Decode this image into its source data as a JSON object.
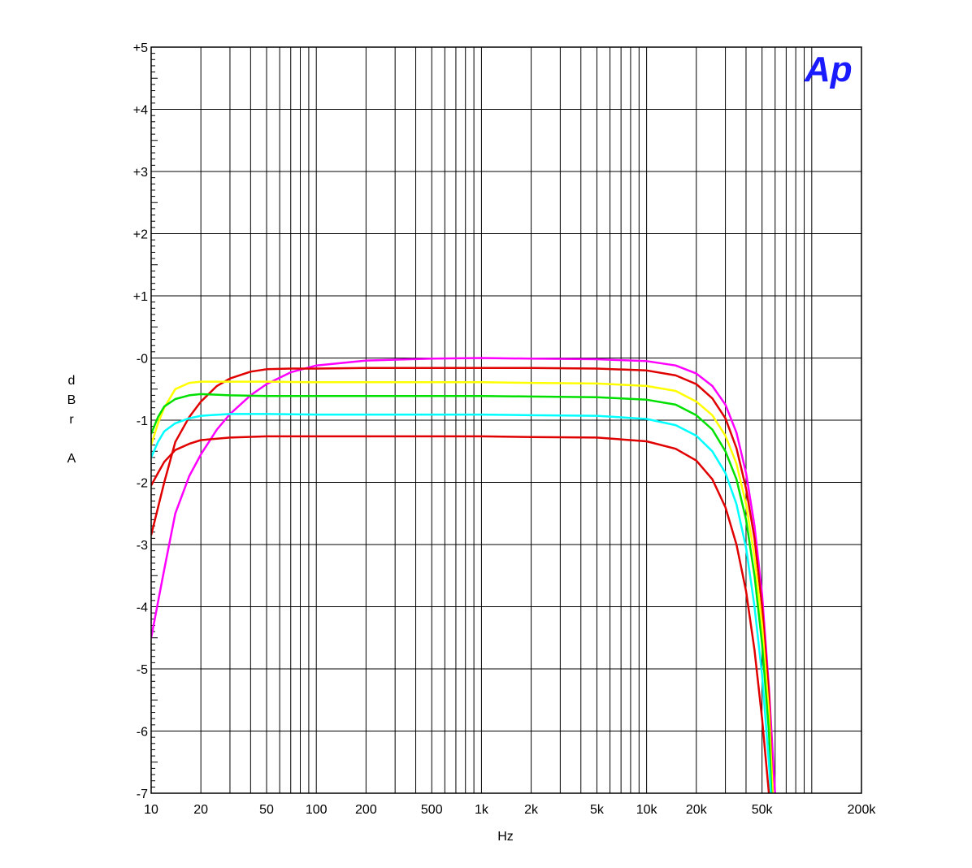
{
  "logo": "Ap",
  "chart_data": {
    "type": "line",
    "xlabel": "Hz",
    "ylabel": "dBr A",
    "ylabel_chars": [
      "d",
      "B",
      "r",
      "",
      "A"
    ],
    "x_scale": "log",
    "xlim": [
      10,
      200000
    ],
    "ylim": [
      -7,
      5
    ],
    "grid": true,
    "x_tick_labels": [
      {
        "v": 10,
        "t": "10"
      },
      {
        "v": 20,
        "t": "20"
      },
      {
        "v": 50,
        "t": "50"
      },
      {
        "v": 100,
        "t": "100"
      },
      {
        "v": 200,
        "t": "200"
      },
      {
        "v": 500,
        "t": "500"
      },
      {
        "v": 1000,
        "t": "1k"
      },
      {
        "v": 2000,
        "t": "2k"
      },
      {
        "v": 5000,
        "t": "5k"
      },
      {
        "v": 10000,
        "t": "10k"
      },
      {
        "v": 20000,
        "t": "20k"
      },
      {
        "v": 50000,
        "t": "50k"
      },
      {
        "v": 200000,
        "t": "200k"
      }
    ],
    "y_tick_labels": [
      {
        "v": 5,
        "t": "+5"
      },
      {
        "v": 4,
        "t": "+4"
      },
      {
        "v": 3,
        "t": "+3"
      },
      {
        "v": 2,
        "t": "+2"
      },
      {
        "v": 1,
        "t": "+1"
      },
      {
        "v": 0,
        "t": "-0"
      },
      {
        "v": -1,
        "t": "-1"
      },
      {
        "v": -2,
        "t": "-2"
      },
      {
        "v": -3,
        "t": "-3"
      },
      {
        "v": -4,
        "t": "-4"
      },
      {
        "v": -5,
        "t": "-5"
      },
      {
        "v": -6,
        "t": "-6"
      },
      {
        "v": -7,
        "t": "-7"
      }
    ],
    "series": [
      {
        "color": "#ff00ff",
        "points": [
          [
            10,
            -4.5
          ],
          [
            12,
            -3.4
          ],
          [
            14,
            -2.5
          ],
          [
            17,
            -1.9
          ],
          [
            20,
            -1.55
          ],
          [
            25,
            -1.15
          ],
          [
            30,
            -0.9
          ],
          [
            40,
            -0.6
          ],
          [
            50,
            -0.42
          ],
          [
            70,
            -0.23
          ],
          [
            100,
            -0.12
          ],
          [
            200,
            -0.04
          ],
          [
            500,
            -0.01
          ],
          [
            1000,
            0
          ],
          [
            2000,
            -0.01
          ],
          [
            5000,
            -0.02
          ],
          [
            10000,
            -0.05
          ],
          [
            15000,
            -0.12
          ],
          [
            20000,
            -0.25
          ],
          [
            25000,
            -0.45
          ],
          [
            30000,
            -0.75
          ],
          [
            35000,
            -1.2
          ],
          [
            40000,
            -1.85
          ],
          [
            45000,
            -2.7
          ],
          [
            50000,
            -3.8
          ],
          [
            55000,
            -5.3
          ],
          [
            60000,
            -7
          ]
        ]
      },
      {
        "color": "#e00000",
        "points": [
          [
            10,
            -2.85
          ],
          [
            12,
            -2.0
          ],
          [
            14,
            -1.35
          ],
          [
            17,
            -0.95
          ],
          [
            20,
            -0.7
          ],
          [
            25,
            -0.45
          ],
          [
            30,
            -0.33
          ],
          [
            40,
            -0.22
          ],
          [
            50,
            -0.18
          ],
          [
            70,
            -0.17
          ],
          [
            100,
            -0.17
          ],
          [
            200,
            -0.16
          ],
          [
            500,
            -0.16
          ],
          [
            1000,
            -0.16
          ],
          [
            2000,
            -0.16
          ],
          [
            5000,
            -0.17
          ],
          [
            10000,
            -0.2
          ],
          [
            15000,
            -0.28
          ],
          [
            20000,
            -0.42
          ],
          [
            25000,
            -0.65
          ],
          [
            30000,
            -0.97
          ],
          [
            35000,
            -1.45
          ],
          [
            40000,
            -2.1
          ],
          [
            45000,
            -2.9
          ],
          [
            50000,
            -4.0
          ],
          [
            55000,
            -5.4
          ],
          [
            58000,
            -7
          ]
        ]
      },
      {
        "color": "#ffff00",
        "points": [
          [
            10,
            -1.4
          ],
          [
            11,
            -1.05
          ],
          [
            12,
            -0.8
          ],
          [
            14,
            -0.5
          ],
          [
            17,
            -0.4
          ],
          [
            20,
            -0.38
          ],
          [
            30,
            -0.38
          ],
          [
            50,
            -0.38
          ],
          [
            100,
            -0.39
          ],
          [
            200,
            -0.39
          ],
          [
            500,
            -0.39
          ],
          [
            1000,
            -0.39
          ],
          [
            2000,
            -0.4
          ],
          [
            5000,
            -0.41
          ],
          [
            10000,
            -0.45
          ],
          [
            15000,
            -0.53
          ],
          [
            20000,
            -0.7
          ],
          [
            25000,
            -0.92
          ],
          [
            30000,
            -1.25
          ],
          [
            35000,
            -1.7
          ],
          [
            40000,
            -2.35
          ],
          [
            45000,
            -3.2
          ],
          [
            50000,
            -4.3
          ],
          [
            55000,
            -5.7
          ],
          [
            58000,
            -7
          ]
        ]
      },
      {
        "color": "#00e000",
        "points": [
          [
            10,
            -1.22
          ],
          [
            11,
            -0.95
          ],
          [
            12,
            -0.78
          ],
          [
            14,
            -0.66
          ],
          [
            17,
            -0.6
          ],
          [
            20,
            -0.58
          ],
          [
            30,
            -0.6
          ],
          [
            50,
            -0.61
          ],
          [
            100,
            -0.61
          ],
          [
            200,
            -0.61
          ],
          [
            500,
            -0.61
          ],
          [
            1000,
            -0.61
          ],
          [
            2000,
            -0.62
          ],
          [
            5000,
            -0.63
          ],
          [
            10000,
            -0.67
          ],
          [
            15000,
            -0.75
          ],
          [
            20000,
            -0.92
          ],
          [
            25000,
            -1.15
          ],
          [
            30000,
            -1.5
          ],
          [
            35000,
            -1.95
          ],
          [
            40000,
            -2.6
          ],
          [
            45000,
            -3.5
          ],
          [
            50000,
            -4.6
          ],
          [
            55000,
            -6.0
          ],
          [
            57000,
            -7
          ]
        ]
      },
      {
        "color": "#00ffff",
        "points": [
          [
            10,
            -1.6
          ],
          [
            11,
            -1.35
          ],
          [
            12,
            -1.18
          ],
          [
            14,
            -1.05
          ],
          [
            17,
            -0.97
          ],
          [
            20,
            -0.93
          ],
          [
            30,
            -0.9
          ],
          [
            50,
            -0.9
          ],
          [
            100,
            -0.91
          ],
          [
            200,
            -0.91
          ],
          [
            500,
            -0.91
          ],
          [
            1000,
            -0.91
          ],
          [
            2000,
            -0.92
          ],
          [
            5000,
            -0.93
          ],
          [
            10000,
            -0.98
          ],
          [
            15000,
            -1.08
          ],
          [
            20000,
            -1.25
          ],
          [
            25000,
            -1.5
          ],
          [
            30000,
            -1.85
          ],
          [
            35000,
            -2.35
          ],
          [
            40000,
            -3.05
          ],
          [
            45000,
            -4.0
          ],
          [
            50000,
            -5.1
          ],
          [
            55000,
            -6.5
          ],
          [
            56500,
            -7
          ]
        ]
      },
      {
        "color": "#e00000",
        "points": [
          [
            10,
            -2.05
          ],
          [
            11,
            -1.85
          ],
          [
            12,
            -1.67
          ],
          [
            14,
            -1.48
          ],
          [
            17,
            -1.38
          ],
          [
            20,
            -1.32
          ],
          [
            30,
            -1.28
          ],
          [
            50,
            -1.26
          ],
          [
            100,
            -1.26
          ],
          [
            200,
            -1.26
          ],
          [
            500,
            -1.26
          ],
          [
            1000,
            -1.26
          ],
          [
            2000,
            -1.27
          ],
          [
            5000,
            -1.28
          ],
          [
            10000,
            -1.34
          ],
          [
            15000,
            -1.46
          ],
          [
            20000,
            -1.65
          ],
          [
            25000,
            -1.95
          ],
          [
            30000,
            -2.4
          ],
          [
            35000,
            -3.0
          ],
          [
            40000,
            -3.75
          ],
          [
            45000,
            -4.7
          ],
          [
            50000,
            -5.8
          ],
          [
            55000,
            -7
          ]
        ]
      }
    ]
  }
}
